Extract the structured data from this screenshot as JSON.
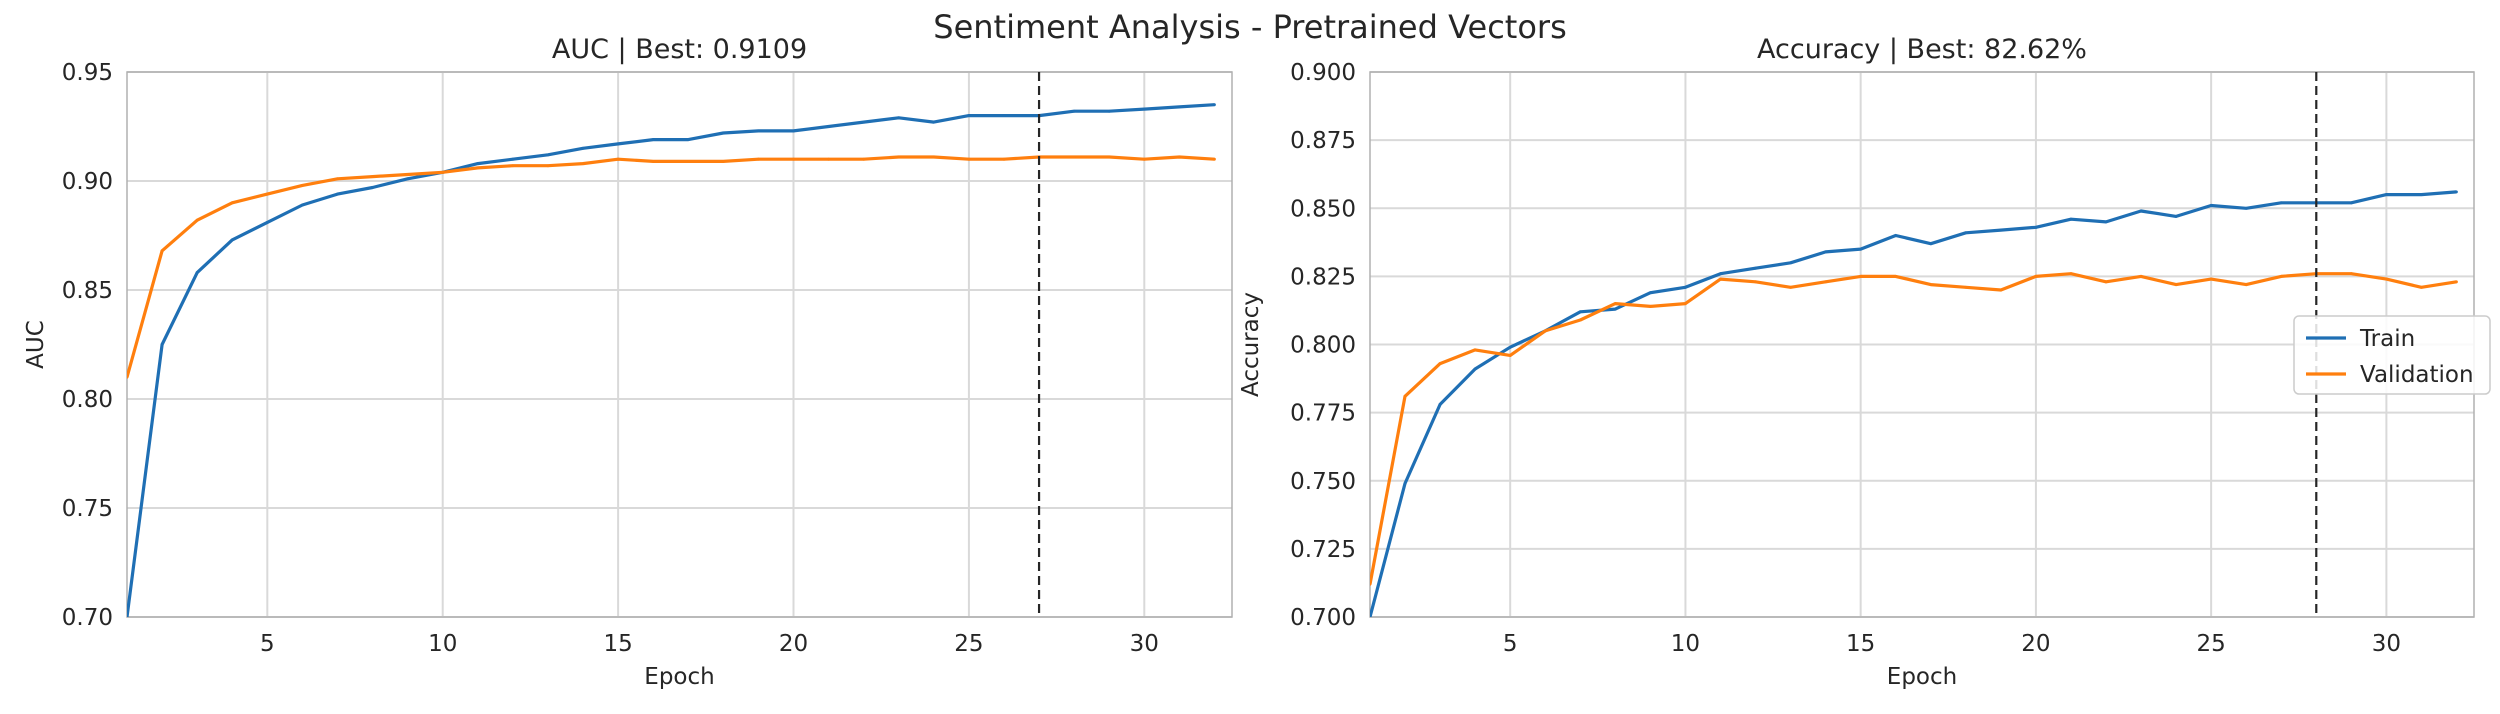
{
  "figure": {
    "suptitle": "Sentiment Analysis - Pretrained Vectors"
  },
  "colors": {
    "train": "#1f6fb4",
    "validation": "#ff7f0e",
    "grid": "#d9d9d9",
    "spine": "#b0b0b0",
    "best_line": "#262626"
  },
  "chart_data": [
    {
      "type": "line",
      "title": "AUC | Best: 0.9109",
      "xlabel": "Epoch",
      "ylabel": "AUC",
      "xlim": [
        1,
        32.5
      ],
      "ylim": [
        0.7,
        0.95
      ],
      "xticks": [
        5,
        10,
        15,
        20,
        25,
        30
      ],
      "yticks": [
        0.7,
        0.75,
        0.8,
        0.85,
        0.9,
        0.95
      ],
      "ytick_labels": [
        "0.70",
        "0.75",
        "0.80",
        "0.85",
        "0.90",
        "0.95"
      ],
      "grid": true,
      "best_epoch": 27,
      "x": [
        1,
        2,
        3,
        4,
        5,
        6,
        7,
        8,
        9,
        10,
        11,
        12,
        13,
        14,
        15,
        16,
        17,
        18,
        19,
        20,
        21,
        22,
        23,
        24,
        25,
        26,
        27,
        28,
        29,
        30,
        31,
        32
      ],
      "series": [
        {
          "key": "train",
          "values": [
            0.7,
            0.825,
            0.858,
            0.873,
            0.881,
            0.889,
            0.894,
            0.897,
            0.901,
            0.904,
            0.908,
            0.91,
            0.912,
            0.915,
            0.917,
            0.919,
            0.919,
            0.922,
            0.923,
            0.923,
            0.925,
            0.927,
            0.929,
            0.927,
            0.93,
            0.93,
            0.93,
            0.932,
            0.932,
            0.933,
            0.934,
            0.935
          ]
        },
        {
          "key": "validation",
          "values": [
            0.81,
            0.868,
            0.882,
            0.89,
            0.894,
            0.898,
            0.901,
            0.902,
            0.903,
            0.904,
            0.906,
            0.907,
            0.907,
            0.908,
            0.91,
            0.909,
            0.909,
            0.909,
            0.91,
            0.91,
            0.91,
            0.91,
            0.911,
            0.911,
            0.91,
            0.91,
            0.911,
            0.911,
            0.911,
            0.91,
            0.911,
            0.91
          ]
        }
      ]
    },
    {
      "type": "line",
      "title": "Accuracy | Best: 82.62%",
      "xlabel": "Epoch",
      "ylabel": "Accuracy",
      "xlim": [
        1,
        32.5
      ],
      "ylim": [
        0.7,
        0.9
      ],
      "xticks": [
        5,
        10,
        15,
        20,
        25,
        30
      ],
      "yticks": [
        0.7,
        0.725,
        0.75,
        0.775,
        0.8,
        0.825,
        0.85,
        0.875,
        0.9
      ],
      "ytick_labels": [
        "0.700",
        "0.725",
        "0.750",
        "0.775",
        "0.800",
        "0.825",
        "0.850",
        "0.875",
        "0.900"
      ],
      "grid": true,
      "best_epoch": 28,
      "legend": {
        "placement": "center-right",
        "entries": [
          {
            "key": "train",
            "label": "Train"
          },
          {
            "key": "validation",
            "label": "Validation"
          }
        ]
      },
      "x": [
        1,
        2,
        3,
        4,
        5,
        6,
        7,
        8,
        9,
        10,
        11,
        12,
        13,
        14,
        15,
        16,
        17,
        18,
        19,
        20,
        21,
        22,
        23,
        24,
        25,
        26,
        27,
        28,
        29,
        30,
        31,
        32
      ],
      "series": [
        {
          "key": "train",
          "name": "Train",
          "values": [
            0.7,
            0.749,
            0.778,
            0.791,
            0.799,
            0.805,
            0.812,
            0.813,
            0.819,
            0.821,
            0.826,
            0.828,
            0.83,
            0.834,
            0.835,
            0.84,
            0.837,
            0.841,
            0.842,
            0.843,
            0.846,
            0.845,
            0.849,
            0.847,
            0.851,
            0.85,
            0.852,
            0.852,
            0.852,
            0.855,
            0.855,
            0.856
          ]
        },
        {
          "key": "validation",
          "name": "Validation",
          "values": [
            0.712,
            0.781,
            0.793,
            0.798,
            0.796,
            0.805,
            0.809,
            0.815,
            0.814,
            0.815,
            0.824,
            0.823,
            0.821,
            0.823,
            0.825,
            0.825,
            0.822,
            0.821,
            0.82,
            0.825,
            0.826,
            0.823,
            0.825,
            0.822,
            0.824,
            0.822,
            0.825,
            0.826,
            0.826,
            0.824,
            0.821,
            0.823
          ]
        }
      ]
    }
  ]
}
